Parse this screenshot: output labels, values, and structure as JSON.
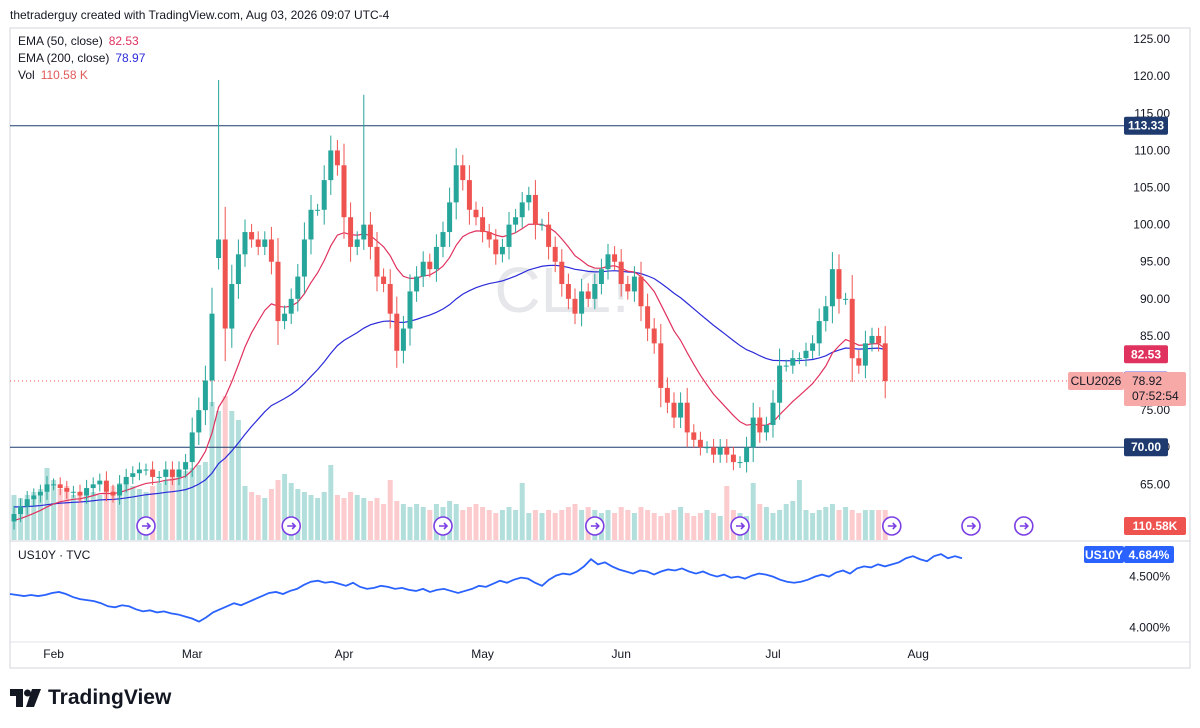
{
  "header": {
    "credit": "thetraderguy created with TradingView.com, Aug 03, 2026 09:07 UTC-4"
  },
  "legend": {
    "ema50_label": "EMA (50, close)",
    "ema50_value": "82.53",
    "ema50_color": "#e0325e",
    "ema200_label": "EMA (200, close)",
    "ema200_value": "78.97",
    "ema200_color": "#2b2bd9",
    "vol_label": "Vol",
    "vol_value": "110.58 K",
    "vol_color": "#e05a5a"
  },
  "watermark": "CL1!",
  "brand": "TradingView",
  "chart_data": {
    "type": "candlestick",
    "symbol": "CLU2026",
    "last_price": "78.92",
    "countdown": "07:52:54",
    "y_ticks": [
      "125.00",
      "120.00",
      "115.00",
      "110.00",
      "105.00",
      "100.00",
      "95.00",
      "90.00",
      "85.00",
      "75.00",
      "70.00",
      "65.00",
      "60.00"
    ],
    "ylim": [
      57.5,
      126.5
    ],
    "x_labels": [
      {
        "label": "Feb",
        "i": 6
      },
      {
        "label": "Mar",
        "i": 27
      },
      {
        "label": "Apr",
        "i": 50
      },
      {
        "label": "May",
        "i": 71
      },
      {
        "label": "Jun",
        "i": 92
      },
      {
        "label": "Jul",
        "i": 115
      },
      {
        "label": "Aug",
        "i": 137
      }
    ],
    "horizontal_lines": [
      {
        "price": 113.33,
        "label": "113.33",
        "color": "#1e3a6e"
      },
      {
        "price": 70.0,
        "label": "70.00",
        "color": "#1e3a6e"
      }
    ],
    "price_badges": [
      {
        "text": "82.53",
        "price": 82.53,
        "color": "#e0325e",
        "name": "ema50-badge"
      },
      {
        "text": "78.97",
        "price": 78.97,
        "color": "#2b2bd9",
        "name": "ema200-badge"
      }
    ],
    "volume_badge": "110.58K",
    "closes": [
      61,
      62,
      63,
      63.5,
      64,
      65,
      65,
      64.5,
      64,
      64,
      63.5,
      64.5,
      65,
      65.5,
      64,
      63.5,
      65,
      66,
      66.5,
      67,
      67,
      66,
      66,
      67,
      66,
      67,
      68,
      72,
      75,
      79,
      88,
      98,
      86,
      92,
      96,
      99,
      98,
      97,
      98,
      95,
      87,
      88,
      90,
      93,
      98,
      102,
      102,
      106,
      110,
      108,
      101,
      97,
      98,
      100,
      97,
      93,
      92,
      88,
      83,
      86,
      91,
      93,
      95,
      94,
      97,
      99,
      103,
      108,
      106,
      102,
      101,
      99,
      98,
      96,
      97,
      100,
      101,
      103,
      104,
      100,
      100,
      97,
      95,
      92,
      90,
      88,
      91,
      90,
      92,
      94,
      96,
      95,
      92,
      91,
      93,
      89,
      86,
      84,
      78,
      76,
      74,
      76,
      72,
      71,
      70,
      70,
      69,
      70,
      69,
      68,
      68,
      70,
      74,
      72,
      73,
      76,
      81,
      81,
      82,
      82,
      83,
      84,
      87,
      89,
      94,
      90,
      90,
      82,
      81,
      84,
      85,
      84,
      78.92
    ],
    "opens_override": {
      "31": 95.5
    },
    "volumes": [
      15,
      14,
      15,
      16,
      17,
      18,
      16,
      17,
      18,
      15,
      16,
      17,
      16,
      15,
      17,
      18,
      19,
      20,
      18,
      17,
      16,
      18,
      19,
      20,
      21,
      22,
      23,
      24,
      25,
      26,
      24,
      23,
      22,
      21,
      20,
      18,
      16,
      15,
      14,
      17,
      20,
      22,
      19,
      17,
      16,
      15,
      14,
      16,
      15,
      15,
      14,
      16,
      15,
      14,
      13,
      14,
      12,
      11,
      13,
      12,
      11,
      12,
      11,
      10,
      12,
      11,
      13,
      12,
      10,
      11,
      12,
      11,
      10,
      9,
      10,
      11,
      10,
      11,
      9,
      10,
      9,
      10,
      9,
      10,
      11,
      12,
      10,
      11,
      10,
      9,
      10,
      9,
      11,
      10,
      9,
      11,
      10,
      9,
      8,
      9,
      10,
      11,
      9,
      8,
      9,
      10,
      9,
      8,
      9,
      10,
      9,
      8,
      10,
      12,
      11,
      9,
      10,
      12,
      13,
      11,
      10,
      9,
      10,
      11,
      12,
      10,
      11,
      10,
      9,
      10,
      10,
      10,
      10
    ],
    "volume_spikes": {
      "5": 6,
      "6": 4,
      "30": 22,
      "31": 20,
      "32": 26,
      "33": 22,
      "34": 20,
      "48": 10,
      "57": 9,
      "77": 8,
      "108": 9,
      "112": 9,
      "119": 9
    },
    "events": [
      {
        "i": 20,
        "name": "event-icon-1"
      },
      {
        "i": 42,
        "name": "event-icon-2"
      },
      {
        "i": 65,
        "name": "event-icon-3"
      },
      {
        "i": 88,
        "name": "event-icon-4"
      },
      {
        "i": 110,
        "name": "event-icon-5"
      },
      {
        "i": 133,
        "name": "event-icon-6"
      },
      {
        "i": 145,
        "name": "event-icon-future",
        "future": true
      },
      {
        "i": 153,
        "name": "event-icon-future2"
      }
    ],
    "subpane": {
      "title": "US10Y · TVC",
      "symbol": "US10Y",
      "value": "4.684%",
      "y_ticks": [
        "4.500%",
        "4.000%"
      ],
      "ylim": [
        3.88,
        4.78
      ],
      "series": [
        4.33,
        4.32,
        4.31,
        4.32,
        4.31,
        4.32,
        4.34,
        4.35,
        4.33,
        4.3,
        4.28,
        4.27,
        4.26,
        4.24,
        4.21,
        4.2,
        4.22,
        4.21,
        4.18,
        4.16,
        4.17,
        4.15,
        4.16,
        4.14,
        4.13,
        4.11,
        4.09,
        4.06,
        4.1,
        4.15,
        4.18,
        4.21,
        4.24,
        4.22,
        4.25,
        4.28,
        4.31,
        4.34,
        4.35,
        4.33,
        4.36,
        4.38,
        4.42,
        4.45,
        4.46,
        4.44,
        4.45,
        4.43,
        4.41,
        4.44,
        4.4,
        4.38,
        4.39,
        4.41,
        4.4,
        4.38,
        4.39,
        4.37,
        4.36,
        4.38,
        4.35,
        4.37,
        4.38,
        4.36,
        4.34,
        4.36,
        4.38,
        4.41,
        4.4,
        4.43,
        4.46,
        4.44,
        4.47,
        4.49,
        4.48,
        4.44,
        4.41,
        4.47,
        4.51,
        4.53,
        4.52,
        4.55,
        4.6,
        4.67,
        4.62,
        4.64,
        4.6,
        4.57,
        4.55,
        4.53,
        4.56,
        4.55,
        4.52,
        4.55,
        4.57,
        4.56,
        4.58,
        4.55,
        4.53,
        4.55,
        4.52,
        4.5,
        4.52,
        4.49,
        4.5,
        4.48,
        4.51,
        4.53,
        4.52,
        4.5,
        4.47,
        4.45,
        4.44,
        4.45,
        4.47,
        4.5,
        4.52,
        4.5,
        4.54,
        4.56,
        4.53,
        4.58,
        4.6,
        4.59,
        4.62,
        4.6,
        4.62,
        4.64,
        4.68,
        4.7,
        4.67,
        4.65,
        4.7,
        4.72,
        4.68,
        4.7,
        4.68
      ],
      "line_color": "#2962ff"
    },
    "ema50_color": "#e0325e",
    "ema200_color": "#2b2bd9",
    "up_color": "#26a69a",
    "down_color": "#ef5350",
    "vol_up_color": "#b2dfdb",
    "vol_down_color": "#fccbcd"
  }
}
